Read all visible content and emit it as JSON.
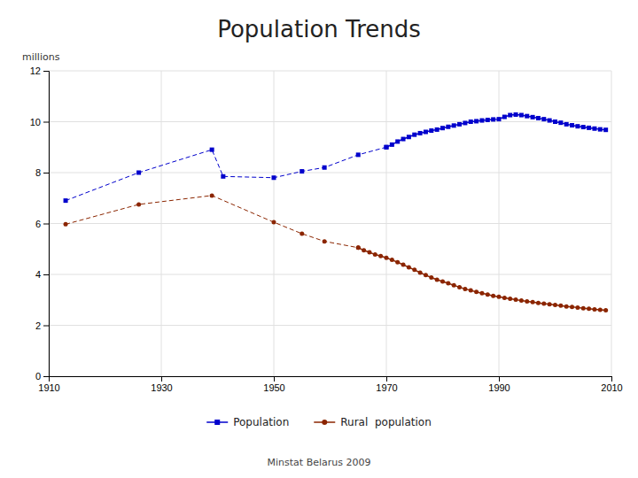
{
  "chart_data": {
    "type": "line",
    "title": "Population Trends",
    "subtitle": "Minstat Belarus 2009",
    "ylabel": "millions",
    "xlim": [
      1910,
      2010
    ],
    "ylim": [
      0,
      12
    ],
    "xticks": [
      1910,
      1930,
      1950,
      1970,
      1990,
      2010
    ],
    "yticks": [
      0,
      2,
      4,
      6,
      8,
      10,
      12
    ],
    "grid": true,
    "legend": "bottom",
    "series": [
      {
        "x": [
          1913,
          1926,
          1939,
          1941,
          1950,
          1955,
          1959,
          1965,
          1970
        ],
        "values": [
          6.9,
          8.0,
          8.9,
          7.85,
          7.8,
          8.05,
          8.2,
          8.7,
          9.0
        ],
        "color": "#0000CC",
        "marker": "square",
        "line_style": "dashed"
      },
      {
        "name": "Population",
        "x": [
          1970,
          1971,
          1972,
          1973,
          1974,
          1975,
          1976,
          1977,
          1978,
          1979,
          1980,
          1981,
          1982,
          1983,
          1984,
          1985,
          1986,
          1987,
          1988,
          1989,
          1990,
          1991,
          1992,
          1993,
          1994,
          1995,
          1996,
          1997,
          1998,
          1999,
          2000,
          2001,
          2002,
          2003,
          2004,
          2005,
          2006,
          2007,
          2008,
          2009
        ],
        "values": [
          9.0,
          9.1,
          9.22,
          9.32,
          9.4,
          9.49,
          9.55,
          9.6,
          9.65,
          9.69,
          9.75,
          9.8,
          9.85,
          9.9,
          9.95,
          10.0,
          10.02,
          10.05,
          10.07,
          10.09,
          10.1,
          10.19,
          10.26,
          10.28,
          10.26,
          10.22,
          10.18,
          10.14,
          10.1,
          10.05,
          10.0,
          9.96,
          9.9,
          9.86,
          9.82,
          9.79,
          9.76,
          9.73,
          9.7,
          9.68
        ],
        "color": "#0000CC",
        "marker": "square",
        "line_style": "solid"
      },
      {
        "x": [
          1913,
          1926,
          1939,
          1950,
          1955,
          1959,
          1965
        ],
        "values": [
          5.97,
          6.75,
          7.1,
          6.05,
          5.6,
          5.3,
          5.05
        ],
        "color": "#8B2500",
        "marker": "circle",
        "line_style": "dashed"
      },
      {
        "name": "Rural  population",
        "x": [
          1965,
          1966,
          1967,
          1968,
          1969,
          1970,
          1971,
          1972,
          1973,
          1974,
          1975,
          1976,
          1977,
          1978,
          1979,
          1980,
          1981,
          1982,
          1983,
          1984,
          1985,
          1986,
          1987,
          1988,
          1989,
          1990,
          1991,
          1992,
          1993,
          1994,
          1995,
          1996,
          1997,
          1998,
          1999,
          2000,
          2001,
          2002,
          2003,
          2004,
          2005,
          2006,
          2007,
          2008,
          2009
        ],
        "values": [
          5.05,
          4.95,
          4.87,
          4.78,
          4.72,
          4.65,
          4.57,
          4.48,
          4.38,
          4.28,
          4.18,
          4.07,
          3.97,
          3.88,
          3.79,
          3.72,
          3.65,
          3.57,
          3.5,
          3.43,
          3.37,
          3.31,
          3.26,
          3.21,
          3.16,
          3.12,
          3.08,
          3.04,
          3.01,
          2.97,
          2.94,
          2.91,
          2.88,
          2.85,
          2.83,
          2.8,
          2.77,
          2.74,
          2.72,
          2.7,
          2.67,
          2.65,
          2.63,
          2.61,
          2.59
        ],
        "color": "#8B2500",
        "marker": "circle",
        "line_style": "solid"
      }
    ]
  }
}
